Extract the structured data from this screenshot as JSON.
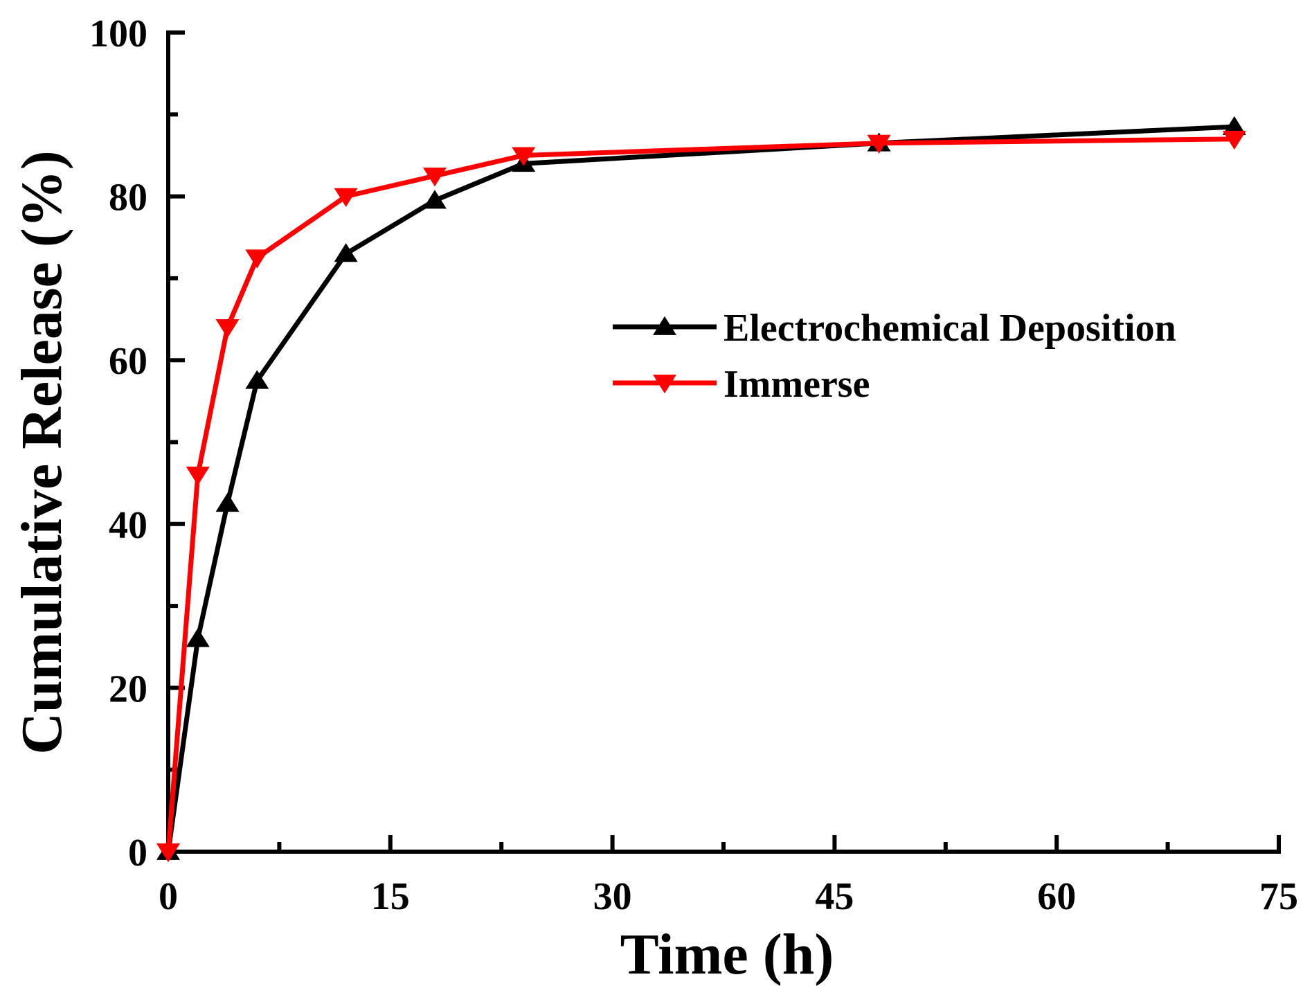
{
  "chart_data": {
    "type": "line",
    "xlabel": "Time (h)",
    "ylabel": "Cumulative Release (%)",
    "xlim": [
      0,
      75
    ],
    "ylim": [
      0,
      100
    ],
    "x_ticks": [
      0,
      15,
      30,
      45,
      60,
      75
    ],
    "y_ticks": [
      0,
      20,
      40,
      60,
      80,
      100
    ],
    "grid": false,
    "legend_position": "center-right",
    "series": [
      {
        "name": "Electrochemical Deposition",
        "color": "#000000",
        "marker": "triangle-up",
        "x": [
          0,
          2,
          4,
          6,
          12,
          18,
          24,
          48,
          72
        ],
        "y": [
          0,
          26,
          42.5,
          57.5,
          73,
          79.5,
          84,
          86.5,
          88.5
        ]
      },
      {
        "name": "Immerse",
        "color": "#ff0000",
        "marker": "triangle-down",
        "x": [
          0,
          2,
          4,
          6,
          12,
          18,
          24,
          48,
          72
        ],
        "y": [
          0,
          46,
          64,
          72.5,
          80,
          82.5,
          85,
          86.5,
          87
        ]
      }
    ]
  }
}
